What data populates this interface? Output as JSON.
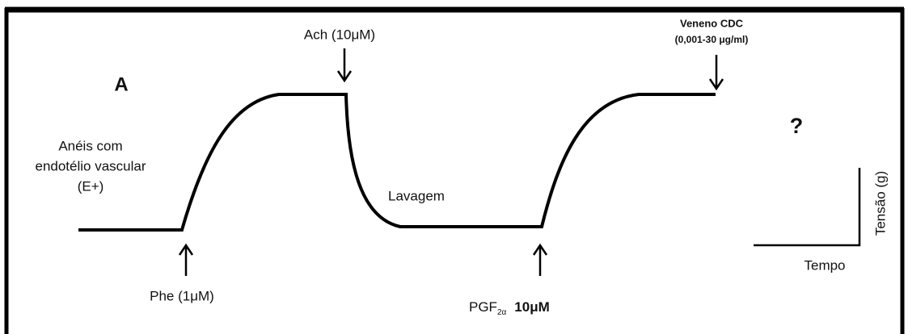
{
  "panel_label": "A",
  "initial_state": [
    "Anéis com",
    "endotélio vascular",
    "(E+)"
  ],
  "steps": [
    {
      "label": "Phe (1μM)"
    },
    {
      "label": "Ach (10μM)"
    },
    {
      "label": "Lavagem"
    },
    {
      "label": "PGF",
      "subscript": "2α",
      "dose": "10μM"
    },
    {
      "lines": [
        "Veneno CDC",
        "(0,001-30 μg/ml)"
      ]
    }
  ],
  "unknown_result": "?",
  "scale": {
    "y_label": "Tensão (g)",
    "x_label": "Tempo"
  }
}
